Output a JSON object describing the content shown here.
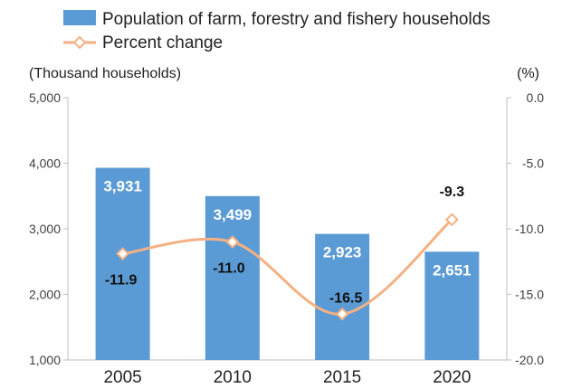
{
  "chart_data": {
    "type": "bar",
    "categories": [
      "2005",
      "2010",
      "2015",
      "2020"
    ],
    "series": [
      {
        "name": "Population of farm, forestry and fishery households",
        "type": "bar",
        "axis": "left",
        "values": [
          3931,
          3499,
          2923,
          2651
        ],
        "labels": [
          "3,931",
          "3,499",
          "2,923",
          "2,651"
        ]
      },
      {
        "name": "Percent change",
        "type": "line",
        "axis": "right",
        "values": [
          -11.9,
          -11.0,
          -16.5,
          -9.3
        ],
        "labels": [
          "-11.9",
          "-11.0",
          "-16.5",
          "-9.3"
        ]
      }
    ],
    "y_left": {
      "label": "(Thousand households)",
      "ylim": [
        1000,
        5000
      ],
      "ticks": [
        1000,
        2000,
        3000,
        4000,
        5000
      ],
      "tick_labels": [
        "1,000",
        "2,000",
        "3,000",
        "4,000",
        "5,000"
      ]
    },
    "y_right": {
      "label": "(%)",
      "ylim": [
        -20,
        0
      ],
      "ticks": [
        -20,
        -15,
        -10,
        -5,
        0
      ],
      "tick_labels": [
        "-20.0",
        "-15.0",
        "-10.0",
        "-5.0",
        "0.0"
      ]
    },
    "grid": false,
    "legend_position": "top-left",
    "colors": {
      "bar": "#5B9BD5",
      "line": "#F4B183",
      "marker_fill": "#ffffff"
    }
  }
}
